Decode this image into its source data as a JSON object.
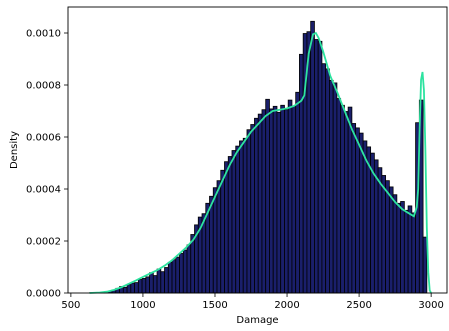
{
  "chart_data": {
    "type": "bar",
    "title": "",
    "xlabel": "Damage",
    "ylabel": "Density",
    "xlim": [
      480,
      3110
    ],
    "ylim": [
      0,
      0.0011
    ],
    "xticks": [
      500,
      1000,
      1500,
      2000,
      2500,
      3000
    ],
    "xtick_labels": [
      "500",
      "1000",
      "1500",
      "2000",
      "2500",
      "3000"
    ],
    "yticks": [
      0,
      0.0002,
      0.0004,
      0.0006,
      0.0008,
      0.001
    ],
    "ytick_labels": [
      "0.0000",
      "0.0002",
      "0.0004",
      "0.0006",
      "0.0008",
      "0.0010"
    ],
    "grid": false,
    "bar_color": "#1a1f6b",
    "bar_edge_color": "#000000",
    "kde_color": "#2de3a0",
    "histogram": {
      "bin_start": 630,
      "bin_width": 26,
      "densities": [
        1e-06,
        1e-06,
        2e-06,
        3e-06,
        5e-06,
        8e-06,
        1.2e-05,
        1.8e-05,
        2.5e-05,
        2.2e-05,
        3.2e-05,
        3.8e-05,
        4e-05,
        5.2e-05,
        5.6e-05,
        6.2e-05,
        7.8e-05,
        6.7e-05,
        9.2e-05,
        8.2e-05,
        9.8e-05,
        0.000118,
        0.000128,
        0.000138,
        0.000152,
        0.000165,
        0.000185,
        0.000225,
        0.000262,
        0.000292,
        0.000305,
        0.000345,
        0.000372,
        0.000405,
        0.000432,
        0.000472,
        0.000505,
        0.000525,
        0.000548,
        0.000565,
        0.000585,
        0.000595,
        0.000628,
        0.000648,
        0.000672,
        0.000688,
        0.000705,
        0.000745,
        0.000708,
        0.000718,
        0.000695,
        0.000722,
        0.000705,
        0.000742,
        0.000718,
        0.000772,
        0.000918,
        0.000998,
        0.001005,
        0.001045,
        0.000975,
        0.000968,
        0.000882,
        0.000862,
        0.000818,
        0.000808,
        0.000748,
        0.000722,
        0.000698,
        0.000715,
        0.000652,
        0.000635,
        0.000615,
        0.000585,
        0.000562,
        0.000538,
        0.000512,
        0.000482,
        0.000452,
        0.000432,
        0.000408,
        0.000378,
        0.000345,
        0.000352,
        0.000318,
        0.000335,
        0.000308,
        0.000655,
        0.000742,
        0.000215
      ]
    },
    "kde": {
      "x": [
        630,
        700,
        750,
        800,
        850,
        900,
        950,
        1000,
        1050,
        1100,
        1150,
        1200,
        1250,
        1300,
        1350,
        1400,
        1450,
        1500,
        1550,
        1600,
        1650,
        1700,
        1750,
        1800,
        1850,
        1900,
        1950,
        2000,
        2050,
        2100,
        2120,
        2150,
        2180,
        2200,
        2220,
        2250,
        2300,
        2350,
        2400,
        2450,
        2500,
        2550,
        2600,
        2650,
        2700,
        2750,
        2800,
        2850,
        2880,
        2900,
        2910,
        2920,
        2930,
        2940,
        2950,
        2960,
        2970,
        2980,
        2990,
        3000
      ],
      "y": [
        0,
        2e-06,
        5e-06,
        1.2e-05,
        2.2e-05,
        3.5e-05,
        4.8e-05,
        6.2e-05,
        7.5e-05,
        8.8e-05,
        0.000105,
        0.000125,
        0.00015,
        0.000175,
        0.000205,
        0.00025,
        0.00031,
        0.00037,
        0.00043,
        0.00049,
        0.00054,
        0.00058,
        0.00062,
        0.00065,
        0.00068,
        0.0007,
        0.000705,
        0.00071,
        0.00072,
        0.00074,
        0.00076,
        0.00092,
        0.000995,
        0.001,
        0.00098,
        0.00093,
        0.000835,
        0.00077,
        0.0007,
        0.00063,
        0.00057,
        0.00051,
        0.00046,
        0.00042,
        0.000385,
        0.00035,
        0.000322,
        0.000305,
        0.000295,
        0.00033,
        0.0004,
        0.00063,
        0.00082,
        0.00085,
        0.00078,
        0.00055,
        0.00025,
        8e-05,
        1e-05,
        0
      ]
    }
  }
}
